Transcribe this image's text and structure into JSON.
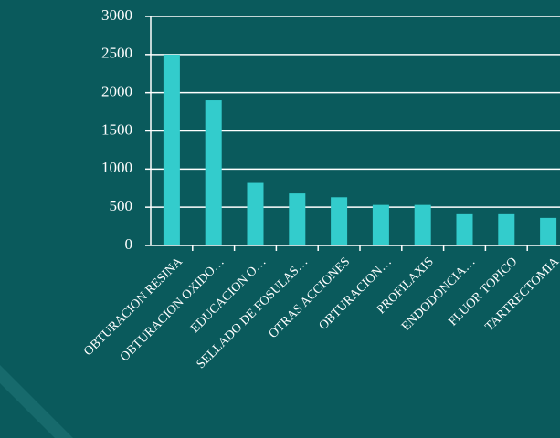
{
  "chart_data": {
    "type": "bar",
    "categories": [
      "OBTURACION RESINA",
      "OBTURACION OXIDO…",
      "EDUCACION O…",
      "SELLADO DE FOSULAS…",
      "OTRAS ACCIONES",
      "OBTURACION…",
      "PROFILAXIS",
      "ENDODONCIA…",
      "FLUOR TOPICO",
      "TARTRECTOMIA"
    ],
    "values": [
      2500,
      1900,
      830,
      680,
      630,
      530,
      530,
      420,
      420,
      360
    ],
    "color": "#33cccc",
    "ylim": [
      0,
      3000
    ],
    "yticks": [
      0,
      500,
      1000,
      1500,
      2000,
      2500,
      3000
    ],
    "grid": true
  }
}
